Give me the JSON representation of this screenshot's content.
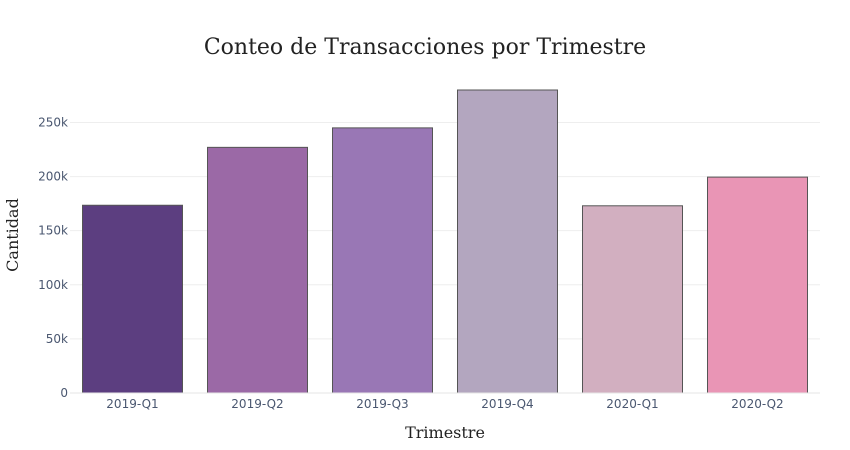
{
  "chart_data": {
    "type": "bar",
    "title": "Conteo de Transacciones por Trimestre",
    "xlabel": "Trimestre",
    "ylabel": "Cantidad",
    "categories": [
      "2019-Q1",
      "2019-Q2",
      "2019-Q3",
      "2019-Q4",
      "2020-Q1",
      "2020-Q2"
    ],
    "values": [
      173500,
      227000,
      245000,
      280000,
      173000,
      199500
    ],
    "colors": [
      "#5c3e80",
      "#9b69a6",
      "#9977b5",
      "#b3a6bf",
      "#d2afc0",
      "#e995b5"
    ],
    "ylim": [
      0,
      280000
    ],
    "yticks": [
      0,
      50000,
      100000,
      150000,
      200000,
      250000
    ],
    "ytick_labels": [
      "0",
      "50k",
      "100k",
      "150k",
      "200k",
      "250k"
    ],
    "grid": true
  }
}
